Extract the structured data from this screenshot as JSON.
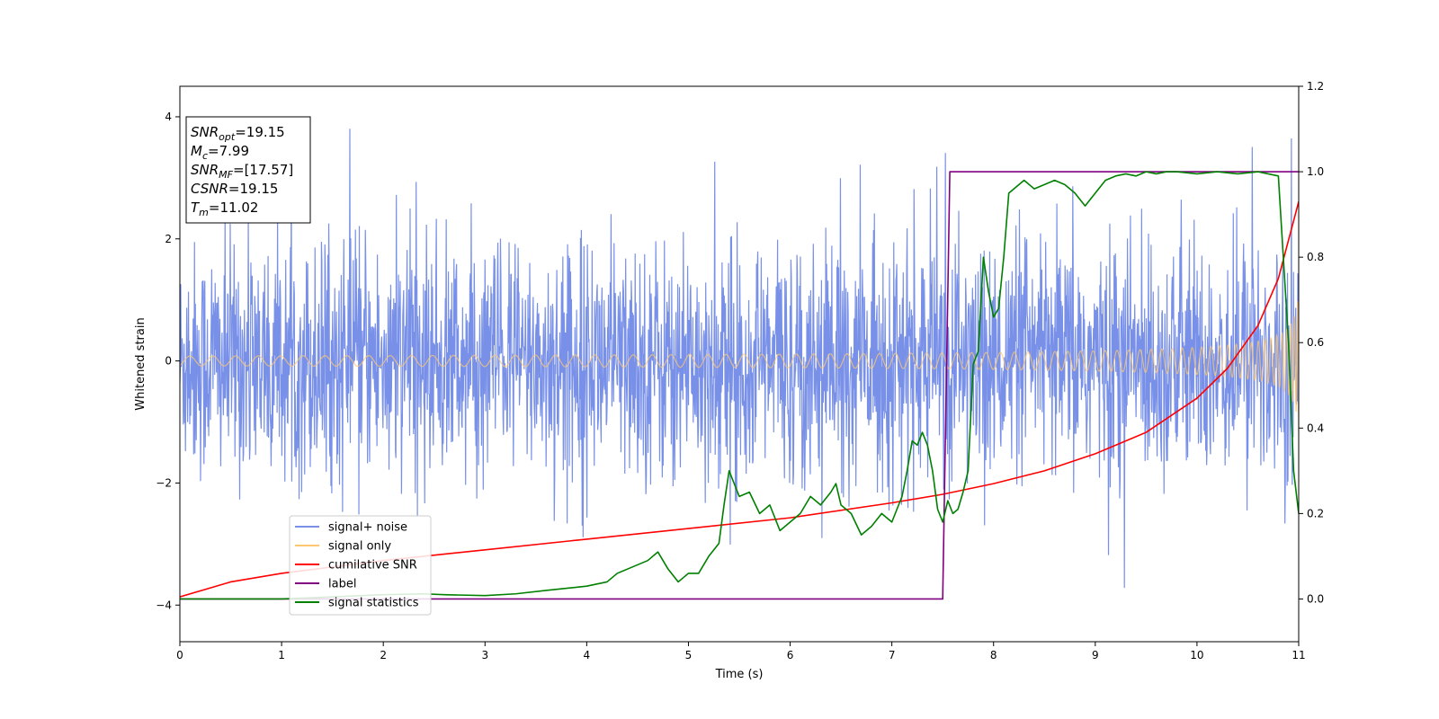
{
  "chart_data": {
    "type": "line",
    "xlabel": "Time (s)",
    "ylabel": "Whitened strain",
    "xlim": [
      0,
      11
    ],
    "ylim": [
      -4.6,
      4.5
    ],
    "y2lim": [
      -0.1,
      1.2
    ],
    "x_ticks": [
      "0",
      "1",
      "2",
      "3",
      "4",
      "5",
      "6",
      "7",
      "8",
      "9",
      "10",
      "11"
    ],
    "y_ticks": [
      "4",
      "2",
      "0",
      "−2",
      "−4"
    ],
    "y2_ticks": [
      "1.2",
      "1.0",
      "0.8",
      "0.6",
      "0.4",
      "0.2",
      "0.0"
    ],
    "grid": false,
    "legend_position": "lower-left",
    "info_box": [
      {
        "sym": "SNR",
        "sub": "opt",
        "val": "=19.15"
      },
      {
        "sym": "M",
        "sub": "c",
        "val": "=7.99"
      },
      {
        "sym": "SNR",
        "sub": "MF",
        "val": "=[17.57]"
      },
      {
        "sym": "CSNR",
        "sub": "",
        "val": "=19.15"
      },
      {
        "sym": "T",
        "sub": "m",
        "val": "=11.02"
      }
    ],
    "series": [
      {
        "name": "signal+ noise",
        "color": "#7890e8",
        "axis": "left",
        "description_kind": "noise",
        "noise_sigma": 1.0,
        "peak_max": 4.1,
        "peak_min": -4.1
      },
      {
        "name": "signal only",
        "color": "#ffc870",
        "axis": "left",
        "description_kind": "chirp",
        "amplitude_start": 0.08,
        "amplitude_end": 1.2,
        "merger_time": 11.02
      },
      {
        "name": "cumilative SNR",
        "color": "#ff0000",
        "axis": "right",
        "x": [
          0,
          0.5,
          1,
          2,
          3,
          4,
          5,
          6,
          7,
          7.5,
          8,
          8.5,
          9,
          9.5,
          10,
          10.3,
          10.6,
          10.8,
          11
        ],
        "y": [
          0.005,
          0.04,
          0.06,
          0.09,
          0.115,
          0.14,
          0.165,
          0.19,
          0.225,
          0.245,
          0.27,
          0.3,
          0.34,
          0.39,
          0.47,
          0.54,
          0.64,
          0.75,
          0.93
        ]
      },
      {
        "name": "label",
        "color": "#800080",
        "axis": "right",
        "x": [
          0,
          7.5,
          7.57,
          11
        ],
        "y": [
          0,
          0,
          1,
          1
        ]
      },
      {
        "name": "signal statistics",
        "color": "#008000",
        "axis": "right",
        "x": [
          0,
          1,
          2,
          2.4,
          2.6,
          3,
          3.3,
          3.6,
          3.8,
          4.0,
          4.2,
          4.3,
          4.4,
          4.5,
          4.6,
          4.7,
          4.8,
          4.9,
          5.0,
          5.1,
          5.2,
          5.3,
          5.35,
          5.4,
          5.5,
          5.6,
          5.7,
          5.8,
          5.9,
          6.0,
          6.1,
          6.2,
          6.3,
          6.4,
          6.45,
          6.5,
          6.6,
          6.7,
          6.8,
          6.9,
          7.0,
          7.1,
          7.15,
          7.2,
          7.25,
          7.3,
          7.35,
          7.4,
          7.45,
          7.5,
          7.55,
          7.6,
          7.65,
          7.7,
          7.75,
          7.8,
          7.85,
          7.9,
          7.95,
          8.0,
          8.05,
          8.1,
          8.15,
          8.2,
          8.25,
          8.3,
          8.4,
          8.5,
          8.6,
          8.7,
          8.8,
          8.9,
          9.0,
          9.1,
          9.2,
          9.3,
          9.4,
          9.5,
          9.6,
          9.7,
          9.8,
          10.0,
          10.2,
          10.4,
          10.6,
          10.8,
          10.9,
          10.95,
          11.0
        ],
        "y": [
          0.0,
          0.0,
          0.01,
          0.012,
          0.01,
          0.008,
          0.012,
          0.02,
          0.025,
          0.03,
          0.04,
          0.06,
          0.07,
          0.08,
          0.09,
          0.11,
          0.07,
          0.04,
          0.06,
          0.06,
          0.1,
          0.13,
          0.22,
          0.3,
          0.24,
          0.25,
          0.2,
          0.22,
          0.16,
          0.18,
          0.2,
          0.24,
          0.22,
          0.25,
          0.27,
          0.22,
          0.2,
          0.15,
          0.17,
          0.2,
          0.18,
          0.24,
          0.3,
          0.37,
          0.36,
          0.39,
          0.36,
          0.3,
          0.21,
          0.18,
          0.23,
          0.2,
          0.21,
          0.25,
          0.3,
          0.55,
          0.58,
          0.8,
          0.72,
          0.66,
          0.68,
          0.8,
          0.95,
          0.96,
          0.97,
          0.98,
          0.96,
          0.97,
          0.98,
          0.97,
          0.95,
          0.92,
          0.95,
          0.98,
          0.99,
          0.995,
          0.99,
          1.0,
          0.995,
          1.0,
          1.0,
          0.995,
          1.0,
          0.995,
          1.0,
          0.99,
          0.6,
          0.3,
          0.2
        ]
      }
    ]
  }
}
